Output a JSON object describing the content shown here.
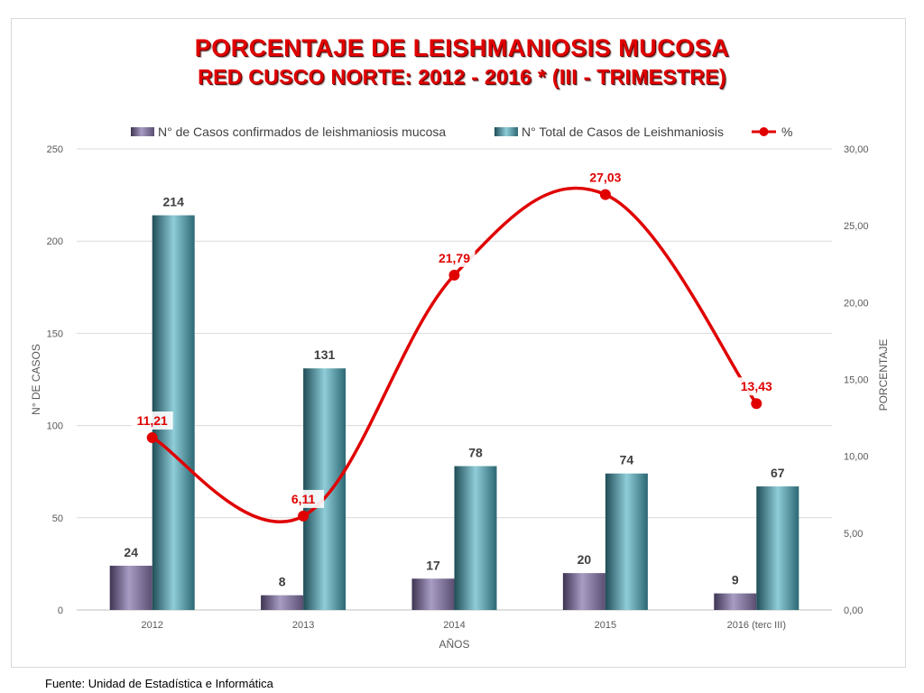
{
  "title": {
    "line1": "PORCENTAJE DE LEISHMANIOSIS  MUCOSA",
    "line2": "RED CUSCO NORTE: 2012 - 2016 * (III - TRIMESTRE)"
  },
  "source": "Fuente: Unidad de Estadística e Informática",
  "colors": {
    "mucosa_bar": "#8a7fa6",
    "total_bar": "#4f9aa8",
    "percent_line": "#e00000",
    "gridline": "#d9d9d9"
  },
  "chart_data": {
    "type": "bar",
    "categories": [
      "2012",
      "2013",
      "2014",
      "2015",
      "2016 (terc III)"
    ],
    "series": [
      {
        "name": "N° de Casos confirmados de leishmaniosis mucosa",
        "values": [
          24,
          8,
          17,
          20,
          9
        ],
        "axis": "left",
        "type": "bar"
      },
      {
        "name": "N° Total de Casos de Leishmaniosis",
        "values": [
          214,
          131,
          78,
          74,
          67
        ],
        "axis": "left",
        "type": "bar"
      },
      {
        "name": "%",
        "values": [
          11.21,
          6.11,
          21.79,
          27.03,
          13.43
        ],
        "axis": "right",
        "type": "line",
        "smooth": true
      }
    ],
    "data_labels": {
      "mucosa": [
        "24",
        "8",
        "17",
        "20",
        "9"
      ],
      "total": [
        "214",
        "131",
        "78",
        "74",
        "67"
      ],
      "percent": [
        "11,21",
        "6,11",
        "21,79",
        "27,03",
        "13,43"
      ]
    },
    "xlabel": "AÑOS",
    "ylabel": "N° DE CASOS",
    "y2label": "PORCENTAJE",
    "ylim": [
      0,
      250
    ],
    "y2lim": [
      0,
      30
    ],
    "y_ticks": [
      "0",
      "50",
      "100",
      "150",
      "200",
      "250"
    ],
    "y2_ticks": [
      "0,00",
      "5,00",
      "10,00",
      "15,00",
      "20,00",
      "25,00",
      "30,00"
    ],
    "grid": true,
    "legend_position": "top"
  }
}
